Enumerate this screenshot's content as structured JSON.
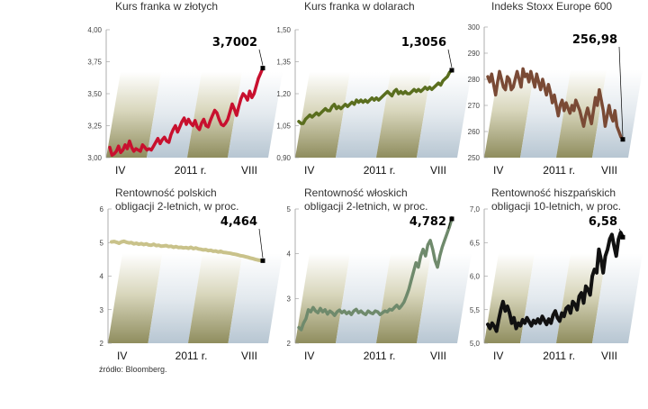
{
  "source": "źródło: Bloomberg.",
  "chart_data": [
    {
      "type": "line",
      "title": "Kurs franka w złotych",
      "x_labels": [
        "IV",
        "2011 r.",
        "VIII"
      ],
      "y_ticks": [
        "4,00",
        "3,75",
        "3,50",
        "3,25",
        "3,00"
      ],
      "ylim": [
        3.0,
        4.0
      ],
      "last_value_label": "3,7002",
      "color": "#c8102e",
      "line_width": 3.5,
      "values": [
        3.08,
        3.02,
        3.03,
        3.05,
        3.09,
        3.04,
        3.06,
        3.1,
        3.07,
        3.13,
        3.08,
        3.05,
        3.07,
        3.06,
        3.05,
        3.1,
        3.08,
        3.06,
        3.07,
        3.06,
        3.09,
        3.12,
        3.15,
        3.11,
        3.14,
        3.16,
        3.13,
        3.12,
        3.18,
        3.22,
        3.25,
        3.2,
        3.24,
        3.28,
        3.31,
        3.26,
        3.3,
        3.27,
        3.25,
        3.29,
        3.24,
        3.22,
        3.27,
        3.3,
        3.25,
        3.24,
        3.29,
        3.33,
        3.37,
        3.35,
        3.3,
        3.26,
        3.25,
        3.27,
        3.3,
        3.36,
        3.42,
        3.38,
        3.33,
        3.4,
        3.46,
        3.5,
        3.48,
        3.45,
        3.52,
        3.47,
        3.5,
        3.56,
        3.62,
        3.66,
        3.7
      ]
    },
    {
      "type": "line",
      "title": "Kurs franka w dolarach",
      "x_labels": [
        "IV",
        "2011 r.",
        "VIII"
      ],
      "y_ticks": [
        "1,50",
        "1,35",
        "1,20",
        "1,05",
        "0,90"
      ],
      "ylim": [
        0.9,
        1.5
      ],
      "last_value_label": "1,3056",
      "color": "#5a6e1e",
      "line_width": 3.5,
      "values": [
        1.07,
        1.06,
        1.06,
        1.08,
        1.09,
        1.1,
        1.09,
        1.1,
        1.11,
        1.1,
        1.11,
        1.12,
        1.13,
        1.12,
        1.12,
        1.14,
        1.15,
        1.13,
        1.14,
        1.13,
        1.14,
        1.15,
        1.14,
        1.15,
        1.16,
        1.15,
        1.17,
        1.16,
        1.17,
        1.16,
        1.17,
        1.16,
        1.17,
        1.18,
        1.17,
        1.18,
        1.17,
        1.18,
        1.19,
        1.2,
        1.21,
        1.2,
        1.19,
        1.21,
        1.22,
        1.2,
        1.21,
        1.2,
        1.21,
        1.2,
        1.2,
        1.21,
        1.22,
        1.21,
        1.22,
        1.21,
        1.22,
        1.23,
        1.22,
        1.23,
        1.22,
        1.23,
        1.24,
        1.25,
        1.24,
        1.26,
        1.27,
        1.28,
        1.3,
        1.31
      ]
    },
    {
      "type": "line",
      "title": "Indeks Stoxx Europe 600",
      "x_labels": [
        "IV",
        "2011 r.",
        "VIII"
      ],
      "y_ticks": [
        "300",
        "290",
        "280",
        "270",
        "260",
        "250"
      ],
      "ylim": [
        250,
        300
      ],
      "last_value_label": "256,98",
      "color": "#7a4a35",
      "line_width": 3.5,
      "values": [
        281,
        279,
        282,
        278,
        274,
        279,
        283,
        280,
        277,
        276,
        281,
        280,
        276,
        277,
        280,
        283,
        280,
        277,
        284,
        281,
        282,
        279,
        283,
        280,
        277,
        282,
        279,
        276,
        280,
        277,
        274,
        278,
        275,
        271,
        274,
        270,
        266,
        270,
        272,
        268,
        271,
        269,
        267,
        270,
        268,
        272,
        270,
        268,
        265,
        262,
        266,
        269,
        266,
        263,
        268,
        273,
        270,
        276,
        272,
        268,
        262,
        266,
        270,
        266,
        264,
        268,
        262,
        260,
        258,
        257
      ]
    },
    {
      "type": "line",
      "title": "Rentowność polskich\nobligacji 2-letnich, w proc.",
      "x_labels": [
        "IV",
        "2011 r.",
        "VIII"
      ],
      "y_ticks": [
        "6",
        "5",
        "4",
        "3",
        "2"
      ],
      "ylim": [
        2,
        6
      ],
      "last_value_label": "4,464",
      "color": "#c9c28a",
      "line_width": 4,
      "values": [
        5.02,
        5.03,
        5.01,
        4.98,
        5.02,
        5.04,
        5.01,
        4.99,
        5.0,
        4.96,
        4.98,
        4.95,
        4.97,
        4.94,
        4.96,
        4.93,
        4.92,
        4.95,
        4.91,
        4.92,
        4.89,
        4.9,
        4.91,
        4.88,
        4.89,
        4.86,
        4.88,
        4.85,
        4.86,
        4.84,
        4.85,
        4.83,
        4.86,
        4.82,
        4.84,
        4.81,
        4.8,
        4.78,
        4.79,
        4.76,
        4.77,
        4.74,
        4.75,
        4.72,
        4.74,
        4.71,
        4.7,
        4.69,
        4.68,
        4.66,
        4.65,
        4.63,
        4.61,
        4.6,
        4.58,
        4.56,
        4.54,
        4.52,
        4.5,
        4.48,
        4.47,
        4.46
      ]
    },
    {
      "type": "line",
      "title": "Rentowność włoskich\nobligacji 2-letnich, w proc.",
      "x_labels": [
        "IV",
        "2011 r.",
        "VIII"
      ],
      "y_ticks": [
        "5",
        "4",
        "3",
        "2"
      ],
      "ylim": [
        2,
        5
      ],
      "last_value_label": "4,782",
      "color": "#6f8a6c",
      "line_width": 3.5,
      "values": [
        2.35,
        2.3,
        2.45,
        2.55,
        2.75,
        2.7,
        2.8,
        2.72,
        2.68,
        2.78,
        2.7,
        2.75,
        2.65,
        2.72,
        2.68,
        2.62,
        2.7,
        2.74,
        2.68,
        2.72,
        2.66,
        2.7,
        2.64,
        2.72,
        2.76,
        2.68,
        2.72,
        2.67,
        2.64,
        2.72,
        2.68,
        2.66,
        2.72,
        2.7,
        2.64,
        2.68,
        2.72,
        2.7,
        2.76,
        2.74,
        2.8,
        2.85,
        2.78,
        2.84,
        2.92,
        3.05,
        3.2,
        3.4,
        3.6,
        3.8,
        3.7,
        3.95,
        4.1,
        3.95,
        4.2,
        4.3,
        4.1,
        3.85,
        3.7,
        3.95,
        4.15,
        4.3,
        4.45,
        4.6,
        4.78
      ]
    },
    {
      "type": "line",
      "title": "Rentowność hiszpańskich\nobligacji 10-letnich, w proc.",
      "x_labels": [
        "IV",
        "2011 r.",
        "VIII"
      ],
      "y_ticks": [
        "7,0",
        "6,5",
        "6,0",
        "5,5",
        "5,0"
      ],
      "ylim": [
        5.0,
        7.0
      ],
      "last_value_label": "6,58",
      "color": "#111111",
      "line_width": 4,
      "values": [
        5.28,
        5.22,
        5.3,
        5.25,
        5.18,
        5.35,
        5.5,
        5.62,
        5.48,
        5.55,
        5.45,
        5.3,
        5.38,
        5.22,
        5.3,
        5.26,
        5.35,
        5.3,
        5.38,
        5.32,
        5.26,
        5.34,
        5.3,
        5.36,
        5.3,
        5.4,
        5.34,
        5.28,
        5.36,
        5.3,
        5.42,
        5.48,
        5.38,
        5.33,
        5.45,
        5.4,
        5.52,
        5.55,
        5.45,
        5.62,
        5.58,
        5.5,
        5.7,
        5.75,
        5.6,
        5.85,
        5.8,
        5.72,
        6.0,
        6.1,
        6.05,
        6.4,
        6.25,
        6.05,
        6.3,
        6.4,
        6.55,
        6.62,
        6.45,
        6.3,
        6.55,
        6.65,
        6.58
      ]
    }
  ]
}
